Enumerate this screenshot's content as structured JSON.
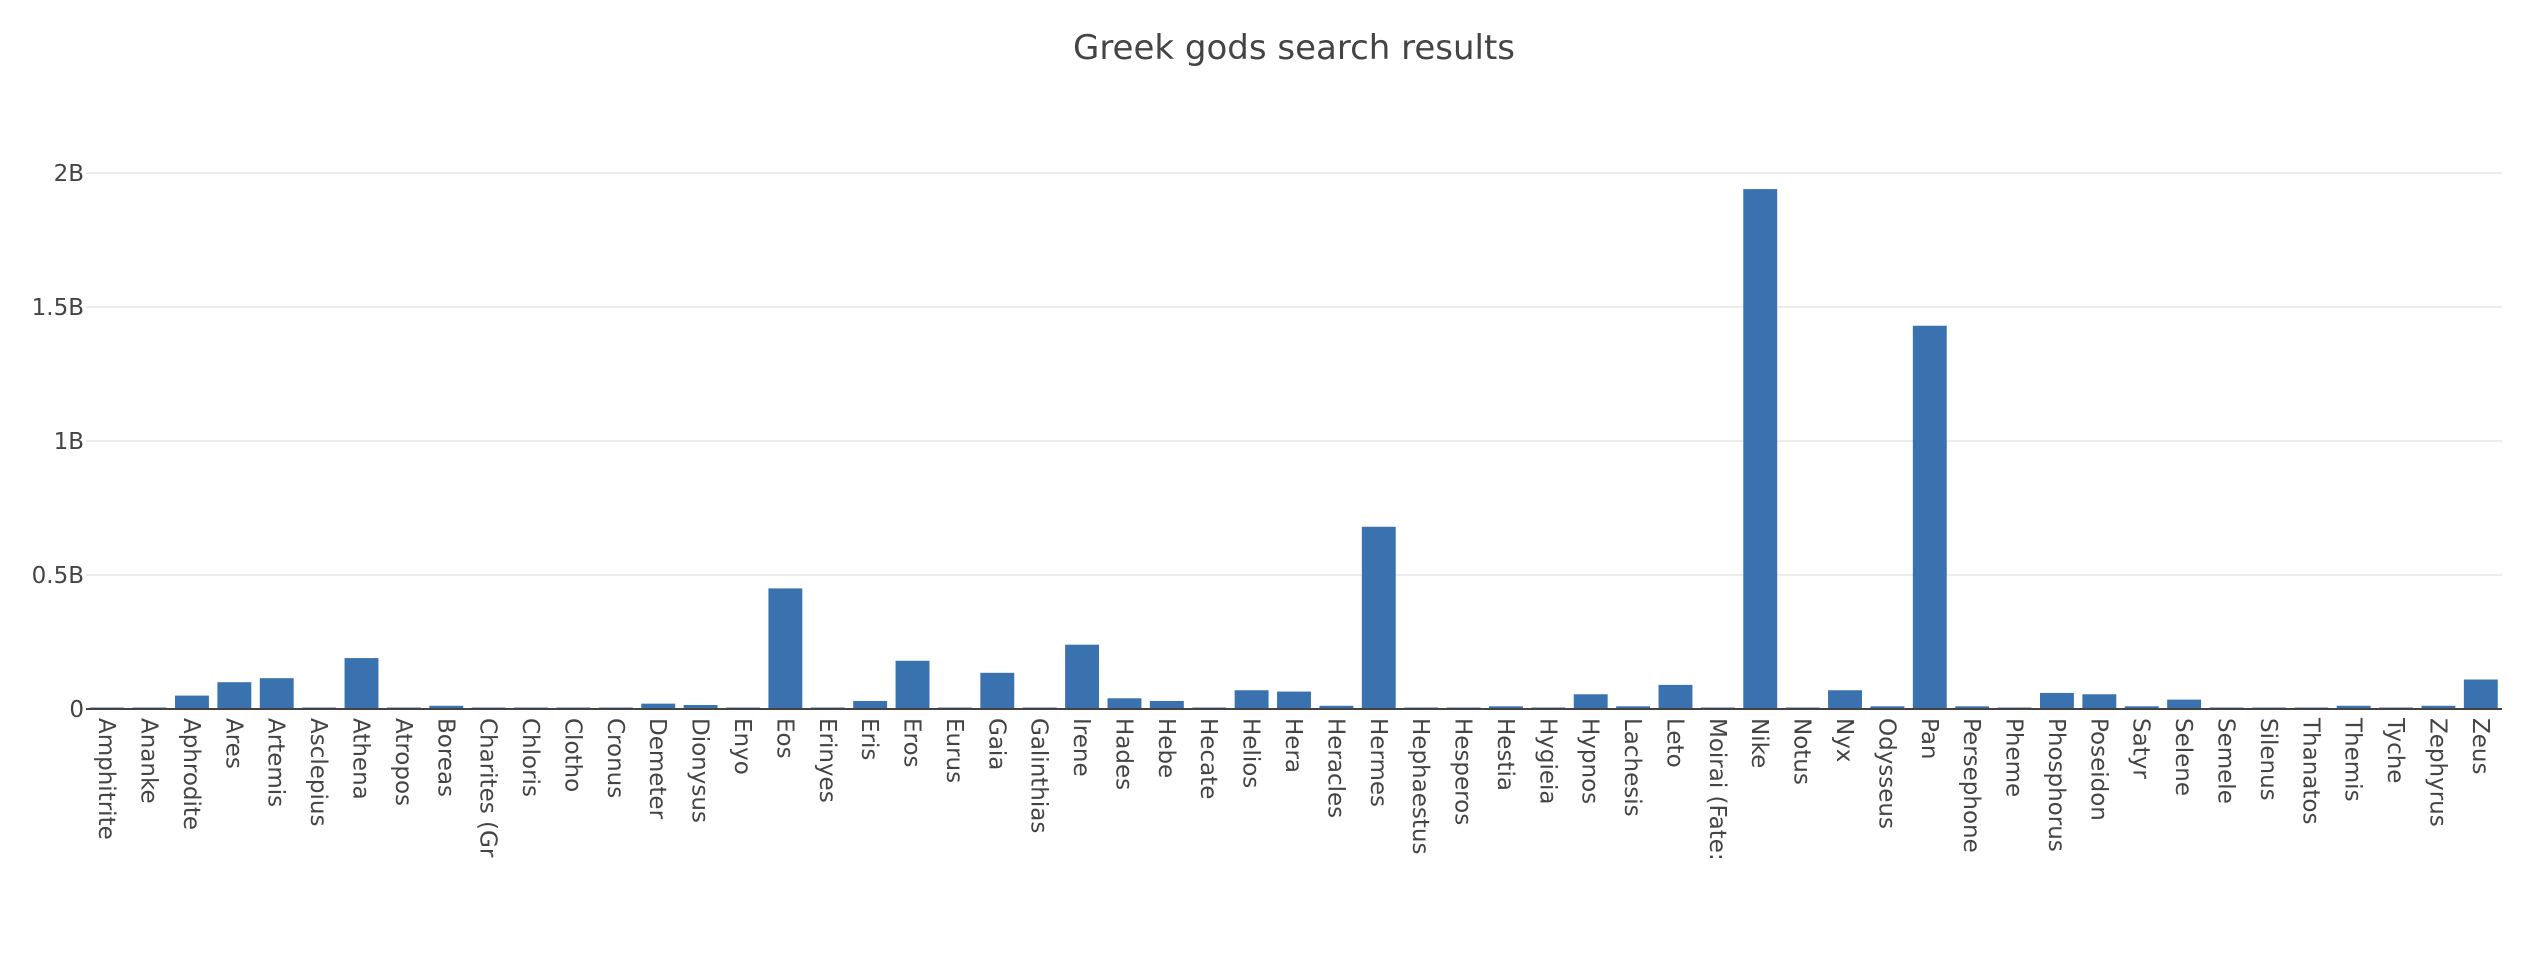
{
  "chart_data": {
    "type": "bar",
    "title": "Greek gods search results",
    "xlabel": "",
    "ylabel": "",
    "ylim": [
      0,
      2.2
    ],
    "grid": true,
    "legend": "none",
    "y_ticks": [
      {
        "value": 0,
        "label": "0"
      },
      {
        "value": 0.5,
        "label": "0.5B"
      },
      {
        "value": 1.0,
        "label": "1B"
      },
      {
        "value": 1.5,
        "label": "1.5B"
      },
      {
        "value": 2.0,
        "label": "2B"
      }
    ],
    "categories": [
      "Amphitrite",
      "Ananke",
      "Aphrodite",
      "Ares",
      "Artemis",
      "Asclepius",
      "Athena",
      "Atropos",
      "Boreas",
      "Charites (Gr",
      "Chloris",
      "Clotho",
      "Cronus",
      "Demeter",
      "Dionysus",
      "Enyo",
      "Eos",
      "Erinyes",
      "Eris",
      "Eros",
      "Eurus",
      "Gaia",
      "Galinthias",
      "Irene",
      "Hades",
      "Hebe",
      "Hecate",
      "Helios",
      "Hera",
      "Heracles",
      "Hermes",
      "Hephaestus",
      "Hesperos",
      "Hestia",
      "Hygieia",
      "Hypnos",
      "Lachesis",
      "Leto",
      "Moirai (Fate:",
      "Nike",
      "Notus",
      "Nyx",
      "Odysseus",
      "Pan",
      "Persephone",
      "Pheme",
      "Phosphorus",
      "Poseidon",
      "Satyr",
      "Selene",
      "Semele",
      "Silenus",
      "Thanatos",
      "Themis",
      "Tyche",
      "Zephyrus",
      "Zeus"
    ],
    "values": [
      0.003,
      0.003,
      0.05,
      0.1,
      0.115,
      0.004,
      0.19,
      0.002,
      0.012,
      0.003,
      0.003,
      0.002,
      0.003,
      0.02,
      0.015,
      0.003,
      0.45,
      0.003,
      0.03,
      0.18,
      0.003,
      0.135,
      0.002,
      0.24,
      0.04,
      0.03,
      0.004,
      0.07,
      0.065,
      0.012,
      0.68,
      0.003,
      0.002,
      0.01,
      0.003,
      0.055,
      0.01,
      0.09,
      0.003,
      1.94,
      0.003,
      0.07,
      0.01,
      1.43,
      0.01,
      0.003,
      0.06,
      0.055,
      0.01,
      0.035,
      0.003,
      0.003,
      0.003,
      0.012,
      0.003,
      0.012,
      0.11
    ],
    "colors": {
      "bar": "#3a72b0",
      "grid": "#e6e6e6",
      "axis": "#444444",
      "text": "#444444",
      "title": "#444444"
    }
  }
}
